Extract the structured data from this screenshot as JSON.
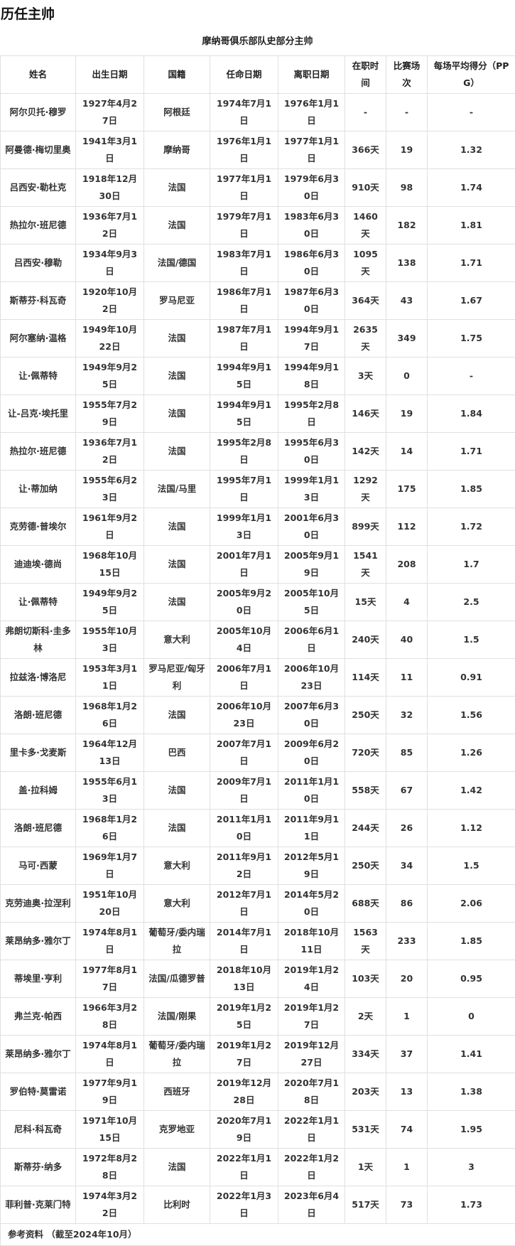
{
  "title": "历任主帅",
  "caption": "摩纳哥俱乐部队史部分主帅",
  "columns": [
    "姓名",
    "出生日期",
    "国籍",
    "任命日期",
    "离职日期",
    "在职时间",
    "比赛场次",
    "每场平均得分（PPG）"
  ],
  "rows": [
    [
      "阿尔贝托·穆罗",
      "1927年4月27日",
      "阿根廷",
      "1974年7月1日",
      "1976年1月1日",
      "-",
      "-",
      "-"
    ],
    [
      "阿曼德·梅切里奥",
      "1941年3月1日",
      "摩纳哥",
      "1976年1月1日",
      "1977年1月1日",
      "366天",
      "19",
      "1.32"
    ],
    [
      "吕西安·勒杜克",
      "1918年12月30日",
      "法国",
      "1977年1月1日",
      "1979年6月30日",
      "910天",
      "98",
      "1.74"
    ],
    [
      "热拉尔·班尼德",
      "1936年7月12日",
      "法国",
      "1979年7月1日",
      "1983年6月30日",
      "1460天",
      "182",
      "1.81"
    ],
    [
      "吕西安·穆勒",
      "1934年9月3日",
      "法国/德国",
      "1983年7月1日",
      "1986年6月30日",
      "1095天",
      "138",
      "1.71"
    ],
    [
      "斯蒂芬·科瓦奇",
      "1920年10月2日",
      "罗马尼亚",
      "1986年7月1日",
      "1987年6月30日",
      "364天",
      "43",
      "1.67"
    ],
    [
      "阿尔塞纳·温格",
      "1949年10月22日",
      "法国",
      "1987年7月1日",
      "1994年9月17日",
      "2635天",
      "349",
      "1.75"
    ],
    [
      "让·佩蒂特",
      "1949年9月25日",
      "法国",
      "1994年9月15日",
      "1994年9月18日",
      "3天",
      "0",
      "-"
    ],
    [
      "让-吕克·埃托里",
      "1955年7月29日",
      "法国",
      "1994年9月15日",
      "1995年2月8日",
      "146天",
      "19",
      "1.84"
    ],
    [
      "热拉尔·班尼德",
      "1936年7月12日",
      "法国",
      "1995年2月8日",
      "1995年6月30日",
      "142天",
      "14",
      "1.71"
    ],
    [
      "让·蒂加纳",
      "1955年6月23日",
      "法国/马里",
      "1995年7月1日",
      "1999年1月13日",
      "1292天",
      "175",
      "1.85"
    ],
    [
      "克劳德·普埃尔",
      "1961年9月2日",
      "法国",
      "1999年1月13日",
      "2001年6月30日",
      "899天",
      "112",
      "1.72"
    ],
    [
      "迪迪埃·德尚",
      "1968年10月15日",
      "法国",
      "2001年7月1日",
      "2005年9月19日",
      "1541天",
      "208",
      "1.7"
    ],
    [
      "让·佩蒂特",
      "1949年9月25日",
      "法国",
      "2005年9月20日",
      "2005年10月5日",
      "15天",
      "4",
      "2.5"
    ],
    [
      "弗朗切斯科·圭多林",
      "1955年10月3日",
      "意大利",
      "2005年10月4日",
      "2006年6月1日",
      "240天",
      "40",
      "1.5"
    ],
    [
      "拉兹洛·博洛尼",
      "1953年3月11日",
      "罗马尼亚/匈牙利",
      "2006年7月1日",
      "2006年10月23日",
      "114天",
      "11",
      "0.91"
    ],
    [
      "洛朗·班尼德",
      "1968年1月26日",
      "法国",
      "2006年10月23日",
      "2007年6月30日",
      "250天",
      "32",
      "1.56"
    ],
    [
      "里卡多·戈麦斯",
      "1964年12月13日",
      "巴西",
      "2007年7月1日",
      "2009年6月20日",
      "720天",
      "85",
      "1.26"
    ],
    [
      "盖·拉科姆",
      "1955年6月13日",
      "法国",
      "2009年7月1日",
      "2011年1月10日",
      "558天",
      "67",
      "1.42"
    ],
    [
      "洛朗·班尼德",
      "1968年1月26日",
      "法国",
      "2011年1月10日",
      "2011年9月11日",
      "244天",
      "26",
      "1.12"
    ],
    [
      "马可·西蒙",
      "1969年1月7日",
      "意大利",
      "2011年9月12日",
      "2012年5月19日",
      "250天",
      "34",
      "1.5"
    ],
    [
      "克劳迪奥·拉涅利",
      "1951年10月20日",
      "意大利",
      "2012年7月1日",
      "2014年5月20日",
      "688天",
      "86",
      "2.06"
    ],
    [
      "莱昂纳多·雅尔丁",
      "1974年8月1日",
      "葡萄牙/委内瑞拉",
      "2014年7月1日",
      "2018年10月11日",
      "1563天",
      "233",
      "1.85"
    ],
    [
      "蒂埃里·亨利",
      "1977年8月17日",
      "法国/瓜德罗普",
      "2018年10月13日",
      "2019年1月24日",
      "103天",
      "20",
      "0.95"
    ],
    [
      "弗兰克·帕西",
      "1966年3月28日",
      "法国/刚果",
      "2019年1月25日",
      "2019年1月27日",
      "2天",
      "1",
      "0"
    ],
    [
      "莱昂纳多·雅尔丁",
      "1974年8月1日",
      "葡萄牙/委内瑞拉",
      "2019年1月27日",
      "2019年12月27日",
      "334天",
      "37",
      "1.41"
    ],
    [
      "罗伯特·莫雷诺",
      "1977年9月19日",
      "西班牙",
      "2019年12月28日",
      "2020年7月18日",
      "203天",
      "13",
      "1.38"
    ],
    [
      "尼科·科瓦奇",
      "1971年10月15日",
      "克罗地亚",
      "2020年7月19日",
      "2022年1月1日",
      "531天",
      "74",
      "1.95"
    ],
    [
      "斯蒂芬·纳多",
      "1972年8月28日",
      "法国",
      "2022年1月1日",
      "2022年1月2日",
      "1天",
      "1",
      "3"
    ],
    [
      "菲利普·克莱门特",
      "1974年3月22日",
      "比利时",
      "2022年1月3日",
      "2023年6月4日",
      "517天",
      "73",
      "1.73"
    ]
  ],
  "footer": "参考资料 （截至2024年10月）"
}
